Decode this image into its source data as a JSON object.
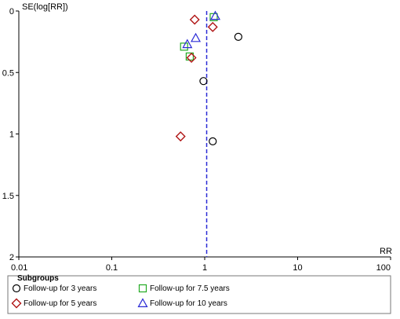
{
  "chart_data": {
    "type": "scatter",
    "title": "",
    "xlabel": "RR",
    "ylabel": "SE(log[RR])",
    "x_scale": "log",
    "xlim": [
      0.01,
      100
    ],
    "ylim": [
      0,
      2
    ],
    "y_inverted": true,
    "x_ticks": [
      "0.01",
      "0.1",
      "1",
      "10",
      "100"
    ],
    "y_ticks": [
      "0",
      "0.5",
      "1",
      "1.5",
      "2"
    ],
    "reference_line": {
      "x": 1.05,
      "style": "dashed",
      "color": "#2b2bd6"
    },
    "grid": false,
    "legend": {
      "title": "Subgroups",
      "placement": "bottom",
      "entries": [
        {
          "label": "Follow-up for 3 years",
          "marker": "circle",
          "color": "#000000"
        },
        {
          "label": "Follow-up for 7.5 years",
          "marker": "square",
          "color": "#22aa22"
        },
        {
          "label": "Follow-up for 5 years",
          "marker": "diamond",
          "color": "#b01515"
        },
        {
          "label": "Follow-up for 10 years",
          "marker": "triangle",
          "color": "#2b2bd6"
        }
      ]
    },
    "series": [
      {
        "name": "Follow-up for 3 years",
        "marker": "circle",
        "color": "#000000",
        "points": [
          {
            "x": 2.3,
            "y": 0.21
          },
          {
            "x": 0.97,
            "y": 0.57
          },
          {
            "x": 1.22,
            "y": 1.06
          }
        ]
      },
      {
        "name": "Follow-up for 7.5 years",
        "marker": "square",
        "color": "#22aa22",
        "points": [
          {
            "x": 1.25,
            "y": 0.05
          },
          {
            "x": 0.6,
            "y": 0.29
          },
          {
            "x": 0.69,
            "y": 0.37
          }
        ]
      },
      {
        "name": "Follow-up for 5 years",
        "marker": "diamond",
        "color": "#b01515",
        "points": [
          {
            "x": 0.78,
            "y": 0.07
          },
          {
            "x": 1.22,
            "y": 0.13
          },
          {
            "x": 0.72,
            "y": 0.38
          },
          {
            "x": 0.55,
            "y": 1.02
          }
        ]
      },
      {
        "name": "Follow-up for 10 years",
        "marker": "triangle",
        "color": "#2b2bd6",
        "points": [
          {
            "x": 1.3,
            "y": 0.04
          },
          {
            "x": 0.8,
            "y": 0.22
          },
          {
            "x": 0.65,
            "y": 0.27
          }
        ]
      }
    ]
  }
}
